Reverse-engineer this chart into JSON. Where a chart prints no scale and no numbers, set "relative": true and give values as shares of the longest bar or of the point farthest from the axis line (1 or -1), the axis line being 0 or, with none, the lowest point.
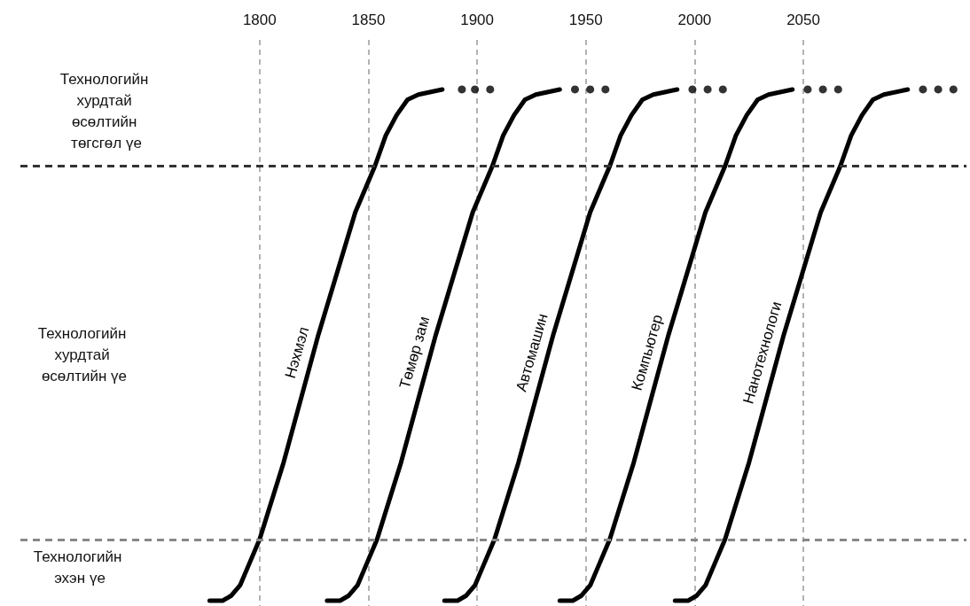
{
  "chart_data": {
    "type": "line",
    "relative": true,
    "xlim": [
      1690,
      2125
    ],
    "xticks": [
      1800,
      1850,
      1900,
      1950,
      2000,
      2050
    ],
    "tick_labels": "x",
    "grid": "x",
    "marker": "none",
    "line_style": "solid",
    "legend": false,
    "ref_lines": [
      {
        "axis": "y",
        "value": 0.85,
        "color": "#333333",
        "line_style": "dashed"
      },
      {
        "axis": "y",
        "value": 0.12,
        "color": "#888888",
        "line_style": "dashed"
      }
    ],
    "annotations": [
      "Технологийн хурдтай өсөлтийн төгсгөл үе",
      "Технологийн хурдтай өсөлтийн үе",
      "Технологийн эхэн үе"
    ],
    "series": [
      {
        "name": "Нэхмэл",
        "color": "#000000",
        "x": [
          1777,
          1783,
          1787,
          1791,
          1795,
          1800,
          1811,
          1827,
          1844,
          1853,
          1858,
          1863,
          1868,
          1873,
          1884
        ],
        "values": [
          0,
          0,
          0.01,
          0.03,
          0.07,
          0.12,
          0.27,
          0.52,
          0.76,
          0.85,
          0.91,
          0.95,
          0.98,
          0.99,
          1
        ]
      },
      {
        "type": "scatter",
        "marker": "circle",
        "color": "#000000",
        "x": [
          1893,
          1899,
          1906
        ],
        "values": [
          1,
          1,
          1
        ]
      },
      {
        "name": "Төмөр зам",
        "color": "#000000",
        "x": [
          1831,
          1837,
          1841,
          1845,
          1849,
          1854,
          1865,
          1881,
          1898,
          1907,
          1912,
          1917,
          1922,
          1927,
          1938
        ],
        "values": [
          0,
          0,
          0.01,
          0.03,
          0.07,
          0.12,
          0.27,
          0.52,
          0.76,
          0.85,
          0.91,
          0.95,
          0.98,
          0.99,
          1
        ]
      },
      {
        "type": "scatter",
        "marker": "circle",
        "color": "#000000",
        "x": [
          1945,
          1952,
          1959
        ],
        "values": [
          1,
          1,
          1
        ]
      },
      {
        "name": "Автомашин",
        "color": "#000000",
        "x": [
          1885,
          1891,
          1895,
          1899,
          1903,
          1908,
          1919,
          1935,
          1952,
          1961,
          1966,
          1971,
          1976,
          1981,
          1992
        ],
        "values": [
          0,
          0,
          0.01,
          0.03,
          0.07,
          0.12,
          0.27,
          0.52,
          0.76,
          0.85,
          0.91,
          0.95,
          0.98,
          0.99,
          1
        ]
      },
      {
        "type": "scatter",
        "marker": "circle",
        "color": "#000000",
        "x": [
          1999,
          2006,
          2013
        ],
        "values": [
          1,
          1,
          1
        ]
      },
      {
        "name": "Компьютер",
        "color": "#000000",
        "x": [
          1938,
          1944,
          1948,
          1952,
          1956,
          1961,
          1972,
          1988,
          2005,
          2014,
          2019,
          2024,
          2029,
          2034,
          2045
        ],
        "values": [
          0,
          0,
          0.01,
          0.03,
          0.07,
          0.12,
          0.27,
          0.52,
          0.76,
          0.85,
          0.91,
          0.95,
          0.98,
          0.99,
          1
        ]
      },
      {
        "type": "scatter",
        "marker": "circle",
        "color": "#000000",
        "x": [
          2052,
          2059,
          2066
        ],
        "values": [
          1,
          1,
          1
        ]
      },
      {
        "name": "Нанотехнологи",
        "color": "#000000",
        "x": [
          1991,
          1997,
          2001,
          2005,
          2009,
          2014,
          2025,
          2041,
          2058,
          2067,
          2072,
          2077,
          2082,
          2087,
          2098
        ],
        "values": [
          0,
          0,
          0.01,
          0.03,
          0.07,
          0.12,
          0.27,
          0.52,
          0.76,
          0.85,
          0.91,
          0.95,
          0.98,
          0.99,
          1
        ]
      },
      {
        "type": "scatter",
        "marker": "circle",
        "color": "#000000",
        "x": [
          2105,
          2112,
          2119
        ],
        "values": [
          1,
          1,
          1
        ]
      }
    ]
  }
}
